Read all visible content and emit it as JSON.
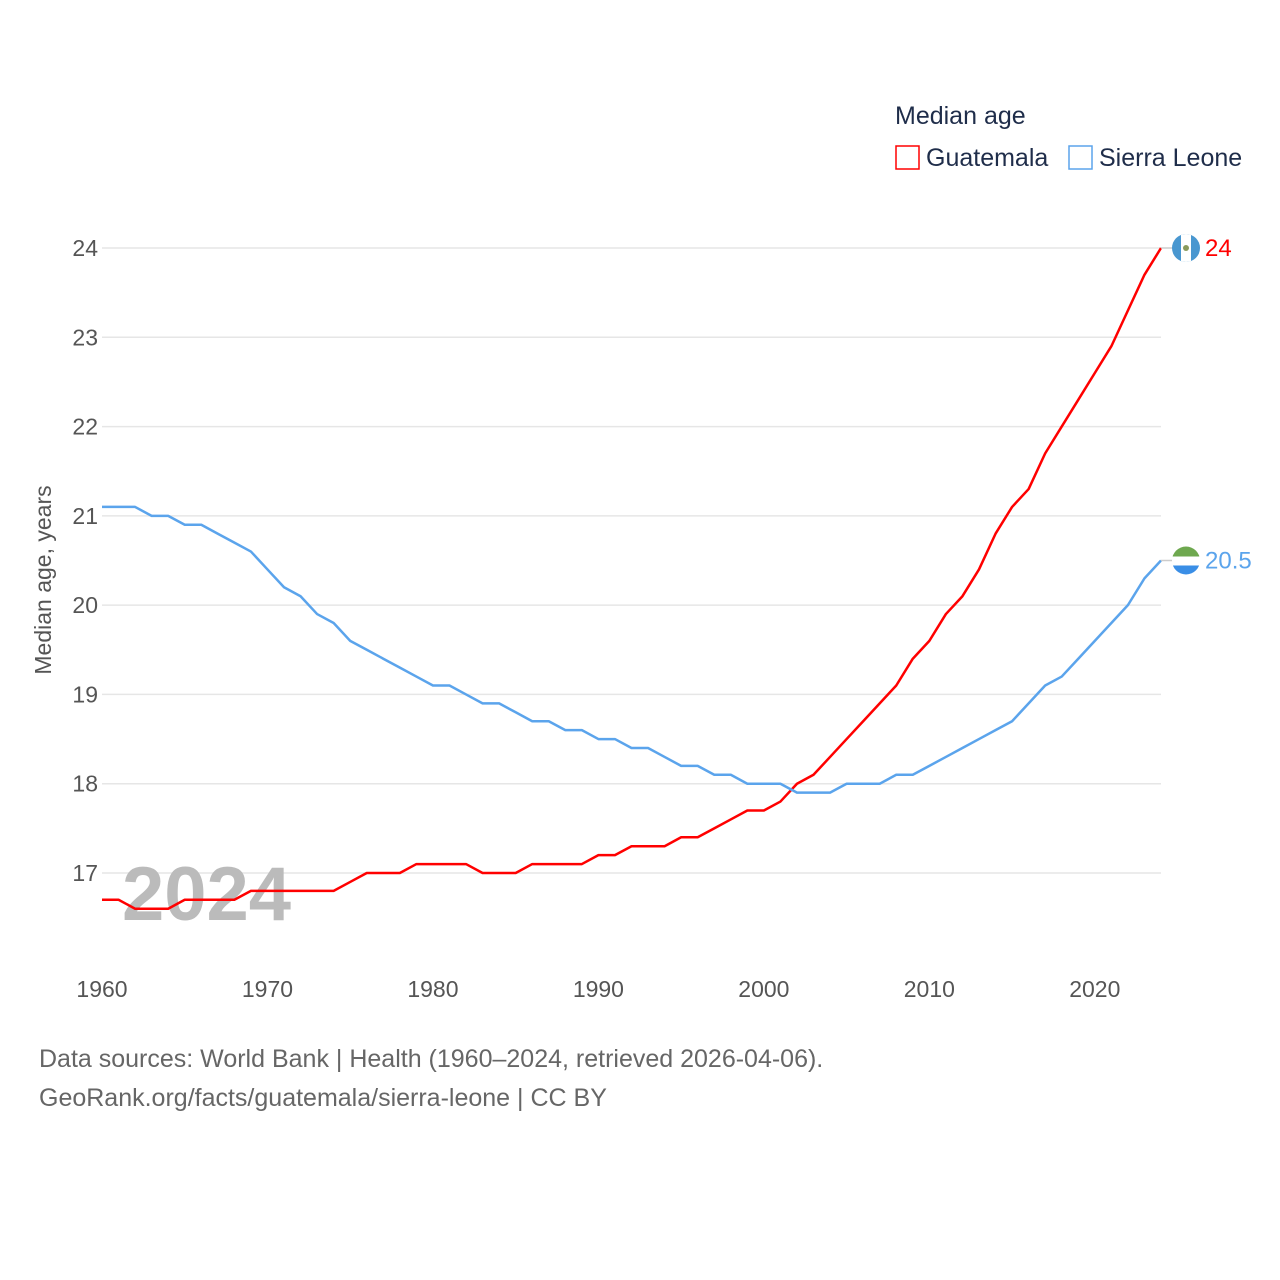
{
  "chart_data": {
    "type": "line",
    "title": "Median age",
    "xlabel": "",
    "ylabel": "Median age, years",
    "xlim": [
      1960,
      2024
    ],
    "ylim": [
      16.3,
      24.2
    ],
    "x_ticks": [
      "1960",
      "1970",
      "1980",
      "1990",
      "2000",
      "2010",
      "2020"
    ],
    "y_ticks": [
      "17",
      "18",
      "19",
      "20",
      "21",
      "22",
      "23",
      "24"
    ],
    "grid": true,
    "legend_placement": "top-right",
    "year_watermark": "2024",
    "x": [
      1960,
      1961,
      1962,
      1963,
      1964,
      1965,
      1966,
      1967,
      1968,
      1969,
      1970,
      1971,
      1972,
      1973,
      1974,
      1975,
      1976,
      1977,
      1978,
      1979,
      1980,
      1981,
      1982,
      1983,
      1984,
      1985,
      1986,
      1987,
      1988,
      1989,
      1990,
      1991,
      1992,
      1993,
      1994,
      1995,
      1996,
      1997,
      1998,
      1999,
      2000,
      2001,
      2002,
      2003,
      2004,
      2005,
      2006,
      2007,
      2008,
      2009,
      2010,
      2011,
      2012,
      2013,
      2014,
      2015,
      2016,
      2017,
      2018,
      2019,
      2020,
      2021,
      2022,
      2023,
      2024
    ],
    "series": [
      {
        "name": "Guatemala",
        "color": "#ff0000",
        "end_label": "24",
        "values": [
          16.7,
          16.7,
          16.6,
          16.6,
          16.6,
          16.7,
          16.7,
          16.7,
          16.7,
          16.8,
          16.8,
          16.8,
          16.8,
          16.8,
          16.8,
          16.9,
          17.0,
          17.0,
          17.0,
          17.1,
          17.1,
          17.1,
          17.1,
          17.0,
          17.0,
          17.0,
          17.1,
          17.1,
          17.1,
          17.1,
          17.2,
          17.2,
          17.3,
          17.3,
          17.3,
          17.4,
          17.4,
          17.5,
          17.6,
          17.7,
          17.7,
          17.8,
          18.0,
          18.1,
          18.3,
          18.5,
          18.7,
          18.9,
          19.1,
          19.4,
          19.6,
          19.9,
          20.1,
          20.4,
          20.8,
          21.1,
          21.3,
          21.7,
          22.0,
          22.3,
          22.6,
          22.9,
          23.3,
          23.7,
          24.0
        ]
      },
      {
        "name": "Sierra Leone",
        "color": "#5ba4ec",
        "end_label": "20.5",
        "values": [
          21.1,
          21.1,
          21.1,
          21.0,
          21.0,
          20.9,
          20.9,
          20.8,
          20.7,
          20.6,
          20.4,
          20.2,
          20.1,
          19.9,
          19.8,
          19.6,
          19.5,
          19.4,
          19.3,
          19.2,
          19.1,
          19.1,
          19.0,
          18.9,
          18.9,
          18.8,
          18.7,
          18.7,
          18.6,
          18.6,
          18.5,
          18.5,
          18.4,
          18.4,
          18.3,
          18.2,
          18.2,
          18.1,
          18.1,
          18.0,
          18.0,
          18.0,
          17.9,
          17.9,
          17.9,
          18.0,
          18.0,
          18.0,
          18.1,
          18.1,
          18.2,
          18.3,
          18.4,
          18.5,
          18.6,
          18.7,
          18.9,
          19.1,
          19.2,
          19.4,
          19.6,
          19.8,
          20.0,
          20.3,
          20.5
        ]
      }
    ]
  },
  "footer": {
    "line1": "Data sources: World Bank | Health (1960–2024, retrieved 2026-04-06).",
    "line2": "GeoRank.org/facts/guatemala/sierra-leone | CC BY"
  }
}
